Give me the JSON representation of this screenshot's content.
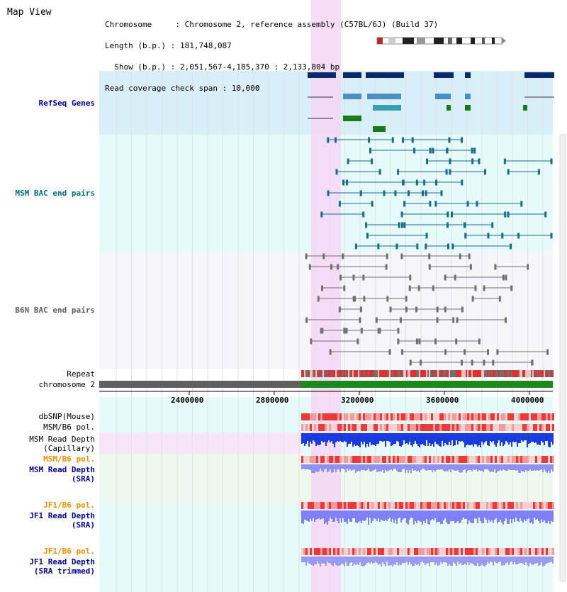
{
  "view": {
    "title": "Map View",
    "info_lines": [
      "Chromosome     : Chromosome 2, reference assembly (C57BL/6J) (Build 37)",
      "Length (b.p.) : 181,748,087",
      "  Show (b.p.) : 2,051,567-4,185,370 : 2,133,804 bp",
      "Read coverage check span : 10,000"
    ]
  },
  "tracks": {
    "refseq_genes": "RefSeq Genes",
    "msm_bac": "MSM BAC end pairs",
    "b6n_bac": "B6N BAC end pairs",
    "repeat": "Repeat",
    "chromosome": "chromosome 2",
    "dbsnp": "dbSNP(Mouse)",
    "msm_b6_pol": "MSM/B6 pol.",
    "msm_depth_cap": "MSM Read Depth\n(Capillary)",
    "msm_b6_pol2": "MSM/B6 pol.",
    "msm_depth_sra": "MSM Read Depth\n(SRA)",
    "jf1_b6_pol": "JF1/B6 pol.",
    "jf1_depth_sra": "JF1 Read Depth\n(SRA)",
    "jf1_b6_pol2": "JF1/B6 pol.",
    "jf1_depth_trim": "JF1 Read Depth\n(SRA trimmed)"
  },
  "axis": {
    "ticks": [
      "2400000",
      "2800000",
      "3200000",
      "3600000",
      "4000000"
    ]
  },
  "colors": {
    "accent_text": "#0000a0",
    "refseq_band": "#d8eef8",
    "msm_band": "#e6fafa",
    "b6n_band": "#f6f6fa",
    "highlight": "#f5d6f3",
    "repeat_red": "#e03030",
    "chrom_gray": "#606060",
    "chrom_green": "#1a8a1a",
    "snp_red": "#f07070",
    "depth_blue": "#1a3be0",
    "depth_light": "#9090f0",
    "orange_label": "#f29000"
  }
}
